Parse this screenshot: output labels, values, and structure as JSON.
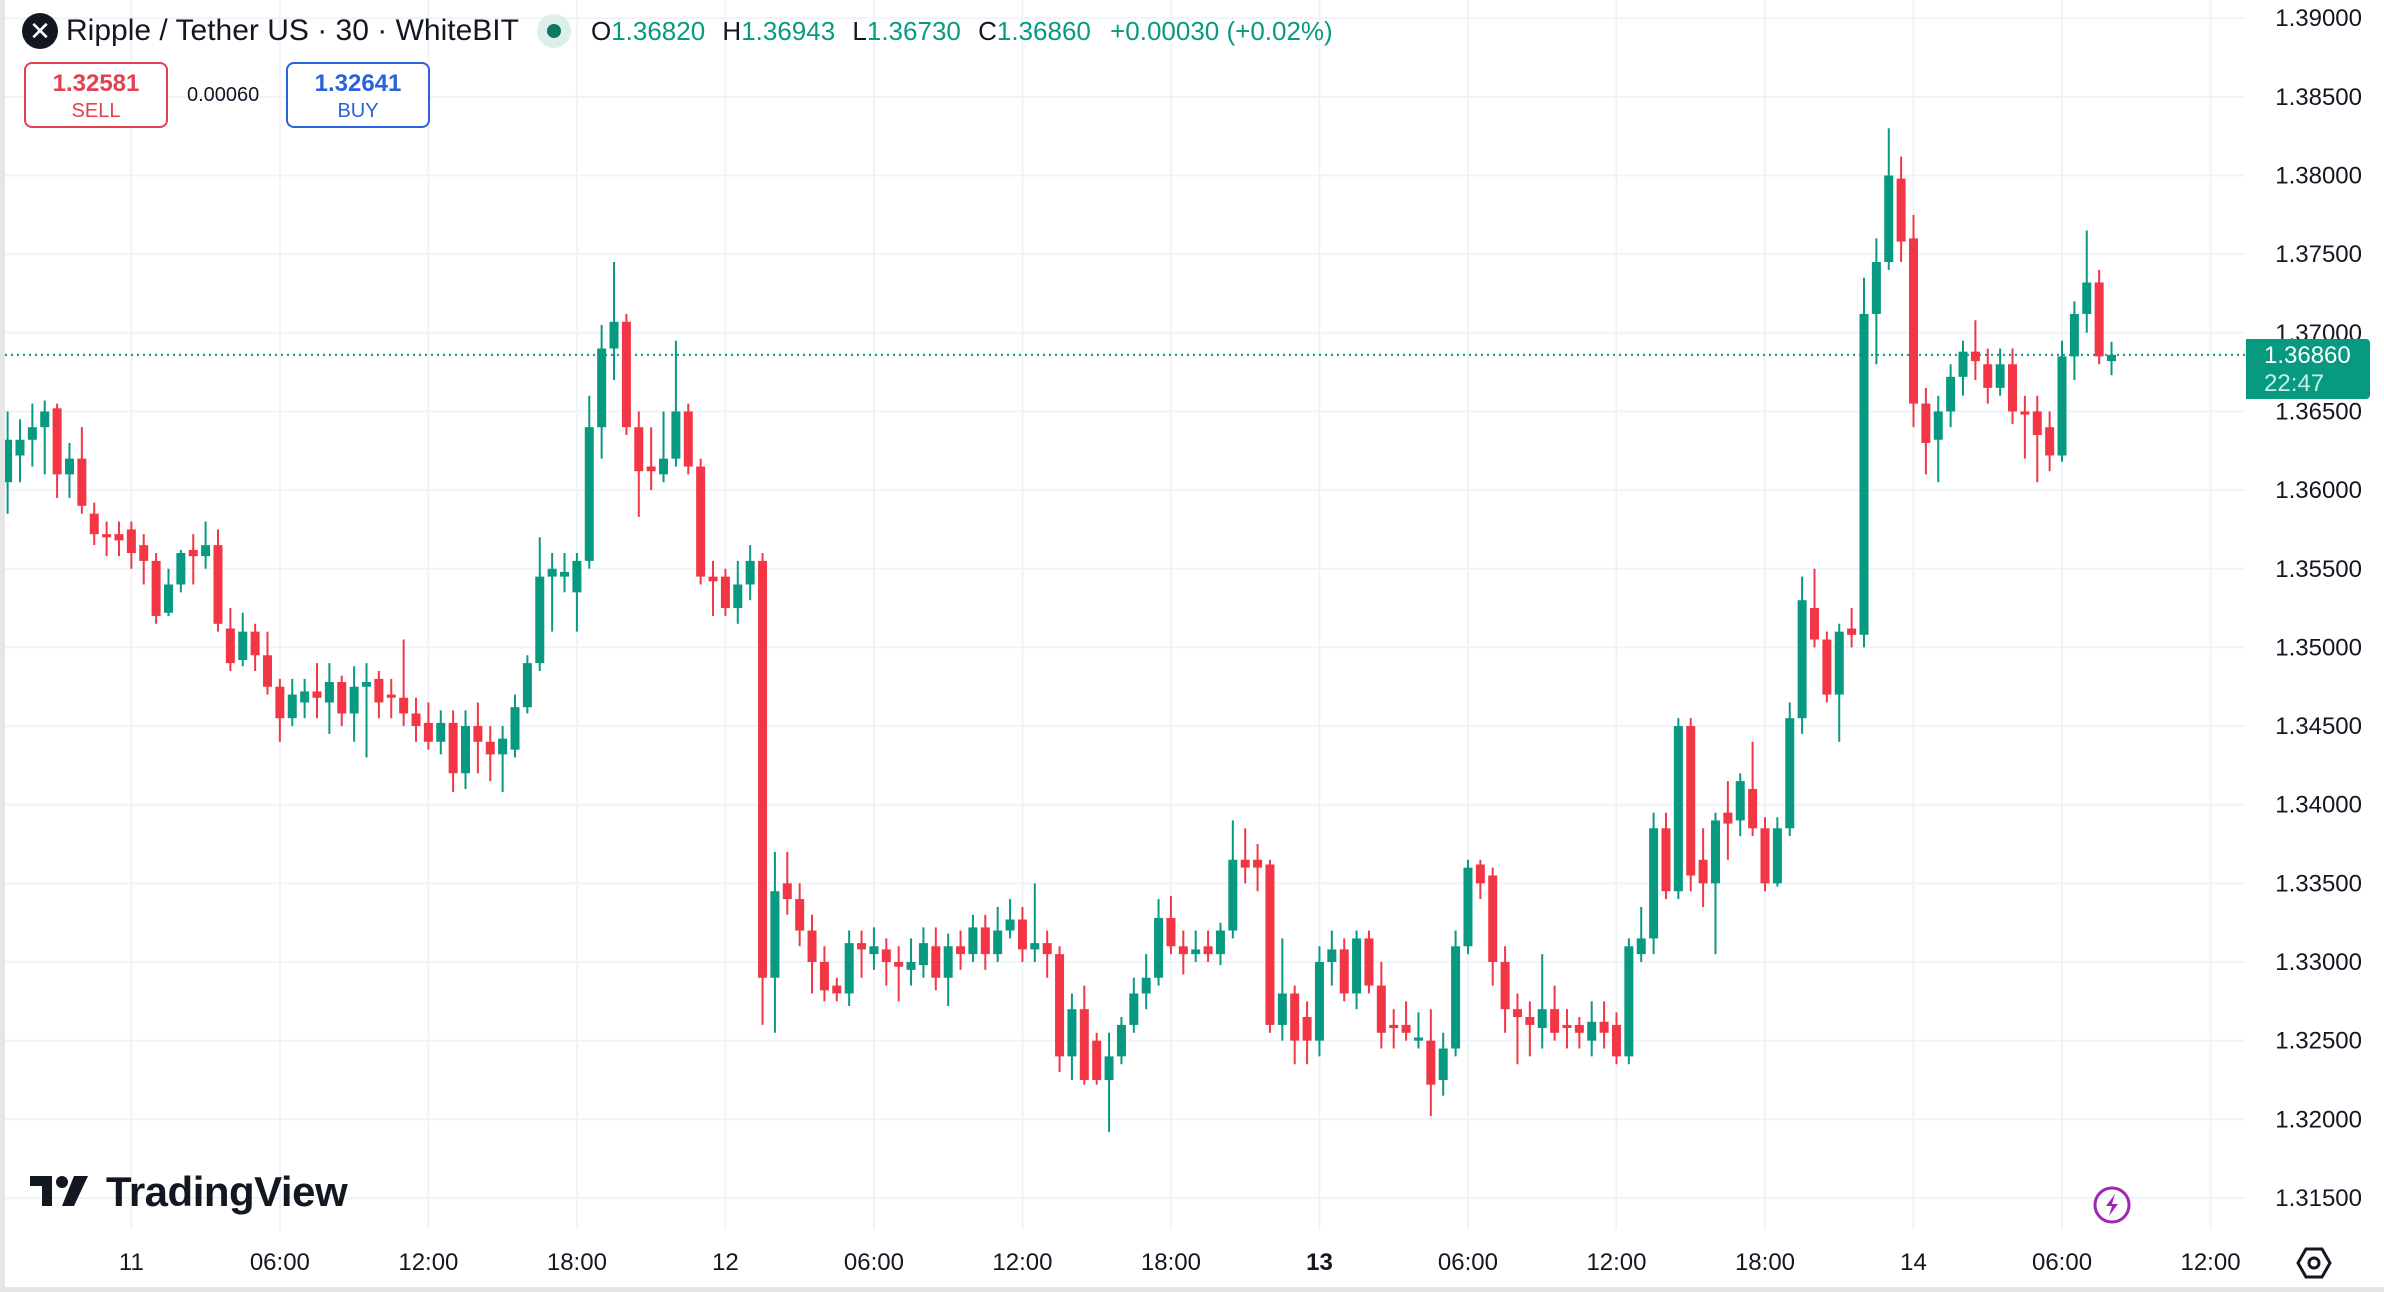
{
  "header": {
    "symbol_icon": "ripple-x-icon",
    "title": "Ripple / Tether US · 30 · WhiteBIT",
    "ohlc": {
      "o_label": "O",
      "o": "1.36820",
      "h_label": "H",
      "h": "1.36943",
      "l_label": "L",
      "l": "1.36730",
      "c_label": "C",
      "c": "1.36860",
      "change": "+0.00030 (+0.02%)"
    }
  },
  "trade": {
    "sell_price": "1.32581",
    "sell_label": "SELL",
    "spread": "0.00060",
    "buy_price": "1.32641",
    "buy_label": "BUY"
  },
  "current_price": {
    "value": "1.36860",
    "countdown": "22:47"
  },
  "logo_text": "TradingView",
  "colors": {
    "up": "#089981",
    "down": "#f23645",
    "grid": "#f0f3fa",
    "accent_purple": "#9c27b0"
  },
  "chart_data": {
    "type": "candlestick",
    "title": "Ripple / Tether US · 30 · WhiteBIT",
    "interval_minutes": 30,
    "ylim": [
      1.3125,
      1.3915
    ],
    "yticks": [
      "1.39000",
      "1.38500",
      "1.38000",
      "1.37500",
      "1.37000",
      "1.36500",
      "1.36000",
      "1.35500",
      "1.35000",
      "1.34500",
      "1.34000",
      "1.33500",
      "1.33000",
      "1.32500",
      "1.32000",
      "1.31500"
    ],
    "xticks": [
      {
        "i": 10,
        "label": "11",
        "bold": false
      },
      {
        "i": 22,
        "label": "06:00",
        "bold": false
      },
      {
        "i": 34,
        "label": "12:00",
        "bold": false
      },
      {
        "i": 46,
        "label": "18:00",
        "bold": false
      },
      {
        "i": 58,
        "label": "12",
        "bold": false
      },
      {
        "i": 70,
        "label": "06:00",
        "bold": false
      },
      {
        "i": 82,
        "label": "12:00",
        "bold": false
      },
      {
        "i": 94,
        "label": "18:00",
        "bold": false
      },
      {
        "i": 106,
        "label": "13",
        "bold": true
      },
      {
        "i": 118,
        "label": "06:00",
        "bold": false
      },
      {
        "i": 130,
        "label": "12:00",
        "bold": false
      },
      {
        "i": 142,
        "label": "18:00",
        "bold": false
      },
      {
        "i": 154,
        "label": "14",
        "bold": false
      },
      {
        "i": 166,
        "label": "06:00",
        "bold": false
      },
      {
        "i": 178,
        "label": "12:00",
        "bold": false
      }
    ],
    "last_price": 1.3686,
    "candles_ohlc": [
      [
        1.3605,
        1.365,
        1.3585,
        1.3632
      ],
      [
        1.3622,
        1.3645,
        1.3605,
        1.3632
      ],
      [
        1.3632,
        1.3655,
        1.3615,
        1.364
      ],
      [
        1.364,
        1.3657,
        1.361,
        1.365
      ],
      [
        1.3652,
        1.3655,
        1.3595,
        1.361
      ],
      [
        1.361,
        1.363,
        1.3595,
        1.362
      ],
      [
        1.362,
        1.364,
        1.3585,
        1.359
      ],
      [
        1.3585,
        1.3592,
        1.3565,
        1.3572
      ],
      [
        1.3572,
        1.358,
        1.3558,
        1.357
      ],
      [
        1.3572,
        1.358,
        1.3558,
        1.3568
      ],
      [
        1.3575,
        1.358,
        1.355,
        1.356
      ],
      [
        1.3565,
        1.3572,
        1.354,
        1.3555
      ],
      [
        1.3555,
        1.356,
        1.3515,
        1.352
      ],
      [
        1.3522,
        1.355,
        1.352,
        1.354
      ],
      [
        1.354,
        1.3562,
        1.3535,
        1.356
      ],
      [
        1.3562,
        1.3572,
        1.354,
        1.3558
      ],
      [
        1.3558,
        1.358,
        1.355,
        1.3565
      ],
      [
        1.3565,
        1.3575,
        1.351,
        1.3515
      ],
      [
        1.3512,
        1.3525,
        1.3485,
        1.349
      ],
      [
        1.3492,
        1.3522,
        1.3488,
        1.351
      ],
      [
        1.351,
        1.3515,
        1.3485,
        1.3495
      ],
      [
        1.3495,
        1.351,
        1.347,
        1.3475
      ],
      [
        1.3475,
        1.348,
        1.344,
        1.3455
      ],
      [
        1.3455,
        1.348,
        1.345,
        1.347
      ],
      [
        1.3465,
        1.348,
        1.3455,
        1.3472
      ],
      [
        1.3472,
        1.349,
        1.3455,
        1.3468
      ],
      [
        1.3465,
        1.349,
        1.3445,
        1.3478
      ],
      [
        1.3478,
        1.3482,
        1.345,
        1.3458
      ],
      [
        1.3458,
        1.3488,
        1.344,
        1.3475
      ],
      [
        1.3475,
        1.349,
        1.343,
        1.3478
      ],
      [
        1.348,
        1.3485,
        1.3455,
        1.3465
      ],
      [
        1.347,
        1.348,
        1.3455,
        1.3468
      ],
      [
        1.3468,
        1.3505,
        1.345,
        1.3458
      ],
      [
        1.3458,
        1.3468,
        1.344,
        1.345
      ],
      [
        1.3452,
        1.3465,
        1.3435,
        1.344
      ],
      [
        1.344,
        1.346,
        1.3432,
        1.3452
      ],
      [
        1.3452,
        1.346,
        1.3408,
        1.342
      ],
      [
        1.342,
        1.346,
        1.341,
        1.345
      ],
      [
        1.345,
        1.3465,
        1.342,
        1.344
      ],
      [
        1.344,
        1.345,
        1.3415,
        1.3432
      ],
      [
        1.3432,
        1.345,
        1.3408,
        1.3442
      ],
      [
        1.3435,
        1.347,
        1.343,
        1.3462
      ],
      [
        1.3462,
        1.3495,
        1.3458,
        1.349
      ],
      [
        1.349,
        1.357,
        1.3485,
        1.3545
      ],
      [
        1.3545,
        1.356,
        1.351,
        1.355
      ],
      [
        1.3545,
        1.356,
        1.3535,
        1.3548
      ],
      [
        1.3535,
        1.356,
        1.351,
        1.3555
      ],
      [
        1.3555,
        1.366,
        1.355,
        1.364
      ],
      [
        1.364,
        1.3705,
        1.362,
        1.369
      ],
      [
        1.369,
        1.3745,
        1.367,
        1.3707
      ],
      [
        1.3707,
        1.3712,
        1.3635,
        1.364
      ],
      [
        1.364,
        1.365,
        1.3583,
        1.3612
      ],
      [
        1.3615,
        1.364,
        1.36,
        1.3612
      ],
      [
        1.361,
        1.365,
        1.3605,
        1.362
      ],
      [
        1.362,
        1.3695,
        1.3615,
        1.365
      ],
      [
        1.365,
        1.3655,
        1.361,
        1.3615
      ],
      [
        1.3615,
        1.362,
        1.354,
        1.3545
      ],
      [
        1.3545,
        1.3555,
        1.352,
        1.3542
      ],
      [
        1.3545,
        1.355,
        1.352,
        1.3525
      ],
      [
        1.3525,
        1.3555,
        1.3515,
        1.354
      ],
      [
        1.354,
        1.3565,
        1.353,
        1.3555
      ],
      [
        1.3555,
        1.356,
        1.326,
        1.329
      ],
      [
        1.329,
        1.337,
        1.3255,
        1.3345
      ],
      [
        1.335,
        1.337,
        1.333,
        1.334
      ],
      [
        1.334,
        1.335,
        1.331,
        1.332
      ],
      [
        1.332,
        1.333,
        1.328,
        1.33
      ],
      [
        1.33,
        1.331,
        1.3275,
        1.3282
      ],
      [
        1.3285,
        1.329,
        1.3275,
        1.328
      ],
      [
        1.328,
        1.332,
        1.3272,
        1.3312
      ],
      [
        1.3312,
        1.332,
        1.329,
        1.3308
      ],
      [
        1.3305,
        1.3322,
        1.3295,
        1.331
      ],
      [
        1.3308,
        1.3315,
        1.3285,
        1.33
      ],
      [
        1.33,
        1.331,
        1.3275,
        1.3297
      ],
      [
        1.3295,
        1.3315,
        1.3285,
        1.33
      ],
      [
        1.3298,
        1.3322,
        1.329,
        1.3312
      ],
      [
        1.331,
        1.3322,
        1.3282,
        1.329
      ],
      [
        1.329,
        1.3318,
        1.3272,
        1.331
      ],
      [
        1.331,
        1.332,
        1.3295,
        1.3305
      ],
      [
        1.3305,
        1.333,
        1.33,
        1.3322
      ],
      [
        1.3322,
        1.333,
        1.3295,
        1.3305
      ],
      [
        1.3305,
        1.3335,
        1.33,
        1.332
      ],
      [
        1.332,
        1.334,
        1.3315,
        1.3327
      ],
      [
        1.3327,
        1.3335,
        1.33,
        1.3308
      ],
      [
        1.3308,
        1.335,
        1.33,
        1.3312
      ],
      [
        1.3312,
        1.332,
        1.329,
        1.3305
      ],
      [
        1.3305,
        1.331,
        1.323,
        1.324
      ],
      [
        1.324,
        1.328,
        1.3225,
        1.327
      ],
      [
        1.327,
        1.3285,
        1.3222,
        1.3225
      ],
      [
        1.325,
        1.3255,
        1.3222,
        1.3225
      ],
      [
        1.3225,
        1.3255,
        1.3192,
        1.324
      ],
      [
        1.324,
        1.3265,
        1.3235,
        1.326
      ],
      [
        1.326,
        1.329,
        1.3255,
        1.328
      ],
      [
        1.328,
        1.3305,
        1.327,
        1.329
      ],
      [
        1.329,
        1.334,
        1.3285,
        1.3328
      ],
      [
        1.3328,
        1.3342,
        1.3305,
        1.331
      ],
      [
        1.331,
        1.332,
        1.3292,
        1.3305
      ],
      [
        1.3305,
        1.332,
        1.33,
        1.3308
      ],
      [
        1.331,
        1.332,
        1.33,
        1.3305
      ],
      [
        1.3305,
        1.3325,
        1.3298,
        1.332
      ],
      [
        1.332,
        1.339,
        1.3315,
        1.3365
      ],
      [
        1.3365,
        1.3385,
        1.335,
        1.336
      ],
      [
        1.3365,
        1.3375,
        1.3345,
        1.336
      ],
      [
        1.3362,
        1.3365,
        1.3255,
        1.326
      ],
      [
        1.326,
        1.3315,
        1.325,
        1.328
      ],
      [
        1.328,
        1.3285,
        1.3235,
        1.325
      ],
      [
        1.3265,
        1.3275,
        1.3235,
        1.325
      ],
      [
        1.325,
        1.331,
        1.324,
        1.33
      ],
      [
        1.33,
        1.332,
        1.3285,
        1.3308
      ],
      [
        1.3308,
        1.3315,
        1.3275,
        1.328
      ],
      [
        1.328,
        1.332,
        1.327,
        1.3315
      ],
      [
        1.3315,
        1.332,
        1.328,
        1.3285
      ],
      [
        1.3285,
        1.33,
        1.3245,
        1.3255
      ],
      [
        1.326,
        1.327,
        1.3245,
        1.3258
      ],
      [
        1.326,
        1.3275,
        1.325,
        1.3255
      ],
      [
        1.325,
        1.3268,
        1.3245,
        1.3252
      ],
      [
        1.325,
        1.327,
        1.3202,
        1.3222
      ],
      [
        1.3225,
        1.3255,
        1.3215,
        1.3245
      ],
      [
        1.3245,
        1.332,
        1.324,
        1.331
      ],
      [
        1.331,
        1.3365,
        1.3305,
        1.336
      ],
      [
        1.3362,
        1.3365,
        1.334,
        1.335
      ],
      [
        1.3355,
        1.336,
        1.3285,
        1.33
      ],
      [
        1.33,
        1.331,
        1.3255,
        1.327
      ],
      [
        1.327,
        1.328,
        1.3235,
        1.3265
      ],
      [
        1.3265,
        1.3275,
        1.324,
        1.326
      ],
      [
        1.3258,
        1.3305,
        1.3245,
        1.327
      ],
      [
        1.327,
        1.3285,
        1.325,
        1.3255
      ],
      [
        1.326,
        1.327,
        1.3245,
        1.3258
      ],
      [
        1.326,
        1.3265,
        1.3245,
        1.3255
      ],
      [
        1.325,
        1.3275,
        1.324,
        1.3262
      ],
      [
        1.3262,
        1.3275,
        1.3245,
        1.3255
      ],
      [
        1.326,
        1.3268,
        1.3235,
        1.324
      ],
      [
        1.324,
        1.3315,
        1.3235,
        1.331
      ],
      [
        1.3305,
        1.3335,
        1.33,
        1.3315
      ],
      [
        1.3315,
        1.3395,
        1.3305,
        1.3385
      ],
      [
        1.3385,
        1.3395,
        1.334,
        1.3345
      ],
      [
        1.3345,
        1.3455,
        1.334,
        1.345
      ],
      [
        1.345,
        1.3455,
        1.3345,
        1.3355
      ],
      [
        1.3365,
        1.3385,
        1.3335,
        1.335
      ],
      [
        1.335,
        1.3395,
        1.3305,
        1.339
      ],
      [
        1.3395,
        1.3415,
        1.3365,
        1.3388
      ],
      [
        1.339,
        1.342,
        1.338,
        1.3415
      ],
      [
        1.341,
        1.344,
        1.338,
        1.3385
      ],
      [
        1.3385,
        1.3392,
        1.3345,
        1.335
      ],
      [
        1.335,
        1.3392,
        1.3348,
        1.3385
      ],
      [
        1.3385,
        1.3465,
        1.338,
        1.3455
      ],
      [
        1.3455,
        1.3545,
        1.3445,
        1.353
      ],
      [
        1.3525,
        1.355,
        1.35,
        1.3505
      ],
      [
        1.3505,
        1.351,
        1.3465,
        1.347
      ],
      [
        1.347,
        1.3515,
        1.344,
        1.351
      ],
      [
        1.3512,
        1.3525,
        1.35,
        1.3508
      ],
      [
        1.3508,
        1.3735,
        1.35,
        1.3712
      ],
      [
        1.3712,
        1.376,
        1.368,
        1.3745
      ],
      [
        1.3745,
        1.383,
        1.374,
        1.38
      ],
      [
        1.3798,
        1.3812,
        1.3745,
        1.3758
      ],
      [
        1.376,
        1.3775,
        1.364,
        1.3655
      ],
      [
        1.3655,
        1.3665,
        1.361,
        1.363
      ],
      [
        1.3632,
        1.366,
        1.3605,
        1.365
      ],
      [
        1.365,
        1.368,
        1.364,
        1.3672
      ],
      [
        1.3672,
        1.3695,
        1.366,
        1.3688
      ],
      [
        1.3688,
        1.3708,
        1.367,
        1.3682
      ],
      [
        1.368,
        1.369,
        1.3655,
        1.3665
      ],
      [
        1.3665,
        1.369,
        1.366,
        1.368
      ],
      [
        1.368,
        1.369,
        1.3642,
        1.365
      ],
      [
        1.365,
        1.366,
        1.362,
        1.3648
      ],
      [
        1.365,
        1.366,
        1.3605,
        1.3635
      ],
      [
        1.364,
        1.365,
        1.3612,
        1.3622
      ],
      [
        1.3622,
        1.3695,
        1.3618,
        1.3685
      ],
      [
        1.3685,
        1.372,
        1.367,
        1.3712
      ],
      [
        1.3712,
        1.3765,
        1.37,
        1.3732
      ],
      [
        1.3732,
        1.374,
        1.368,
        1.3685
      ],
      [
        1.3682,
        1.36943,
        1.3673,
        1.3686
      ]
    ]
  }
}
